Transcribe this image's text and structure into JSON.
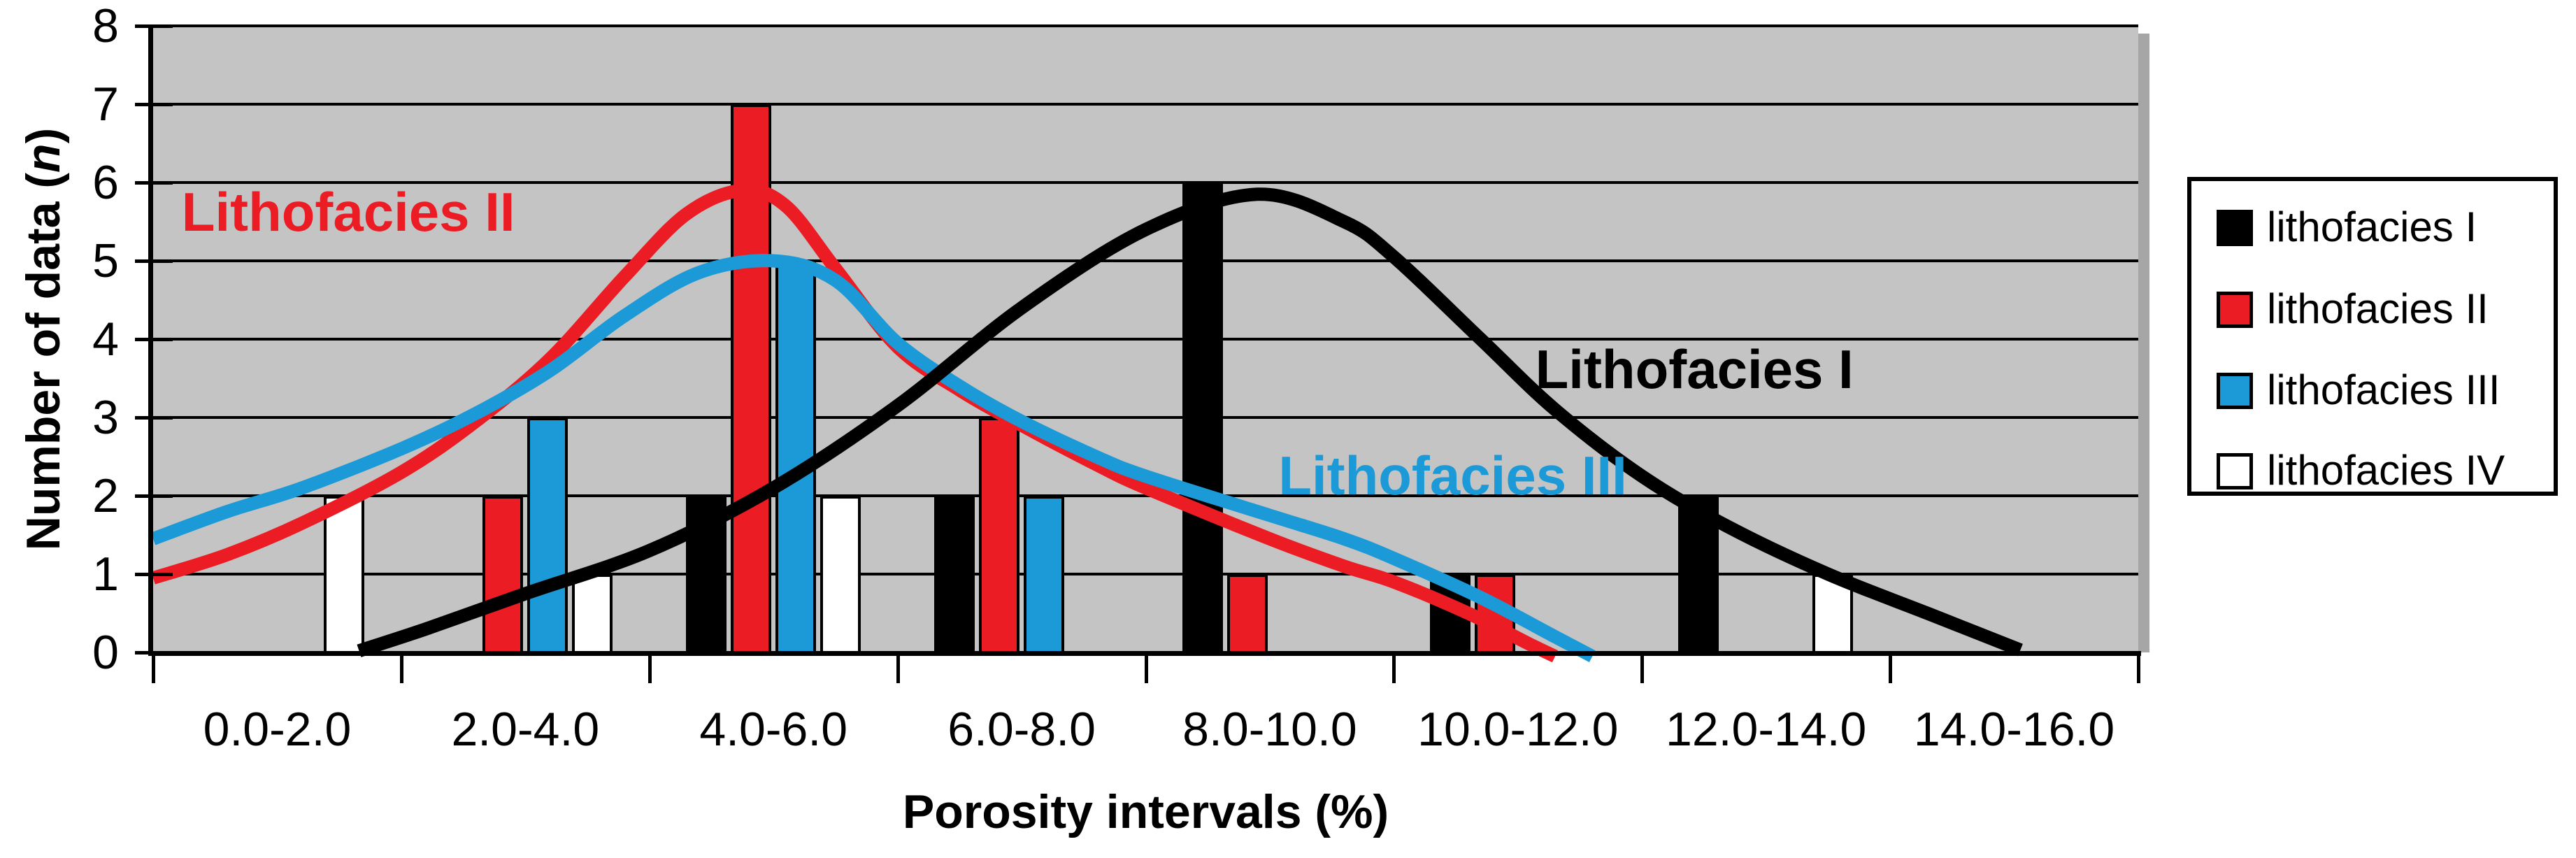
{
  "colors": {
    "background": "#FFFFFF",
    "plot_background": "#C4C4C4",
    "plot_shadow": "#A6A6A6",
    "axis_and_grid": "#000000",
    "lithofacies_I": "#000000",
    "lithofacies_II": "#EC1C24",
    "lithofacies_III": "#1B9AD7",
    "lithofacies_IV": "#FFFFFF"
  },
  "chart_data": {
    "type": "bar",
    "title": "",
    "xlabel": "Porosity intervals (%)",
    "ylabel": "Number of data (n)",
    "ylabel_parts": {
      "prefix": "Number of data (",
      "italic_var": "n",
      "suffix": ")"
    },
    "grid": true,
    "x_axis": {
      "min": 0,
      "max": 16,
      "tick_interval": 2
    },
    "y_axis": {
      "min": 0,
      "max": 8,
      "tick_interval": 1,
      "ticks": [
        "0",
        "1",
        "2",
        "3",
        "4",
        "5",
        "6",
        "7",
        "8"
      ]
    },
    "categories": [
      "0.0-2.0",
      "2.0-4.0",
      "4.0-6.0",
      "6.0-8.0",
      "8.0-10.0",
      "10.0-12.0",
      "12.0-14.0",
      "14.0-16.0"
    ],
    "series": [
      {
        "name": "lithofacies I",
        "color": "#000000",
        "values": [
          0,
          0,
          2,
          2,
          6,
          1,
          2,
          0
        ]
      },
      {
        "name": "lithofacies II",
        "color": "#EC1C24",
        "values": [
          0,
          2,
          7,
          3,
          1,
          1,
          0,
          0
        ]
      },
      {
        "name": "lithofacies III",
        "color": "#1B9AD7",
        "values": [
          0,
          3,
          5,
          2,
          0,
          0,
          0,
          0
        ]
      },
      {
        "name": "lithofacies IV",
        "color": "#FFFFFF",
        "values": [
          2,
          1,
          2,
          0,
          0,
          0,
          1,
          0
        ]
      }
    ],
    "curves": [
      {
        "name": "Lithofacies II",
        "color": "#EC1C24",
        "points": [
          [
            0,
            0.95
          ],
          [
            0.6,
            1.25
          ],
          [
            1.2,
            1.65
          ],
          [
            2,
            2.3
          ],
          [
            2.6,
            2.95
          ],
          [
            3.2,
            3.75
          ],
          [
            3.8,
            4.8
          ],
          [
            4.3,
            5.6
          ],
          [
            4.75,
            5.9
          ],
          [
            5.1,
            5.7
          ],
          [
            5.5,
            4.9
          ],
          [
            6,
            3.9
          ],
          [
            6.5,
            3.35
          ],
          [
            7,
            2.9
          ],
          [
            7.6,
            2.4
          ],
          [
            8,
            2.1
          ],
          [
            9,
            1.45
          ],
          [
            9.6,
            1.1
          ],
          [
            10,
            0.9
          ],
          [
            10.6,
            0.5
          ],
          [
            11.1,
            0.1
          ],
          [
            11.3,
            -0.05
          ]
        ]
      },
      {
        "name": "Lithofacies III",
        "color": "#1B9AD7",
        "points": [
          [
            0,
            1.45
          ],
          [
            0.6,
            1.8
          ],
          [
            1.2,
            2.1
          ],
          [
            2,
            2.6
          ],
          [
            2.6,
            3.05
          ],
          [
            3.2,
            3.6
          ],
          [
            3.8,
            4.3
          ],
          [
            4.4,
            4.85
          ],
          [
            5,
            5.0
          ],
          [
            5.5,
            4.75
          ],
          [
            6,
            3.95
          ],
          [
            6.5,
            3.4
          ],
          [
            7,
            2.95
          ],
          [
            7.6,
            2.5
          ],
          [
            8,
            2.25
          ],
          [
            9,
            1.75
          ],
          [
            9.6,
            1.45
          ],
          [
            10,
            1.2
          ],
          [
            10.7,
            0.7
          ],
          [
            11.3,
            0.2
          ],
          [
            11.6,
            -0.05
          ]
        ]
      },
      {
        "name": "Lithofacies I",
        "color": "#000000",
        "points": [
          [
            1.66,
            0.02
          ],
          [
            2.2,
            0.3
          ],
          [
            3,
            0.75
          ],
          [
            4,
            1.3
          ],
          [
            5,
            2.1
          ],
          [
            6,
            3.15
          ],
          [
            7,
            4.4
          ],
          [
            8,
            5.4
          ],
          [
            8.9,
            5.85
          ],
          [
            9.6,
            5.5
          ],
          [
            10,
            5.05
          ],
          [
            10.7,
            4.0
          ],
          [
            11.3,
            3.1
          ],
          [
            12,
            2.25
          ],
          [
            12.7,
            1.6
          ],
          [
            13.5,
            1.0
          ],
          [
            14.3,
            0.5
          ],
          [
            15.05,
            0.03
          ]
        ]
      }
    ],
    "annotations": [
      {
        "text": "Lithofacies II",
        "color": "#EC1C24",
        "x": 0.23,
        "y": 6.03
      },
      {
        "text": "Lithofacies I",
        "color": "#000000",
        "x": 11.14,
        "y": 4.02
      },
      {
        "text": "Lithofacies III",
        "color": "#1B9AD7",
        "x": 9.07,
        "y": 2.66
      }
    ],
    "legend": {
      "position": "right",
      "entries": [
        {
          "label": "lithofacies I",
          "color": "#000000"
        },
        {
          "label": "lithofacies II",
          "color": "#EC1C24"
        },
        {
          "label": "lithofacies III",
          "color": "#1B9AD7"
        },
        {
          "label": "lithofacies IV",
          "color": "#FFFFFF"
        }
      ]
    }
  }
}
